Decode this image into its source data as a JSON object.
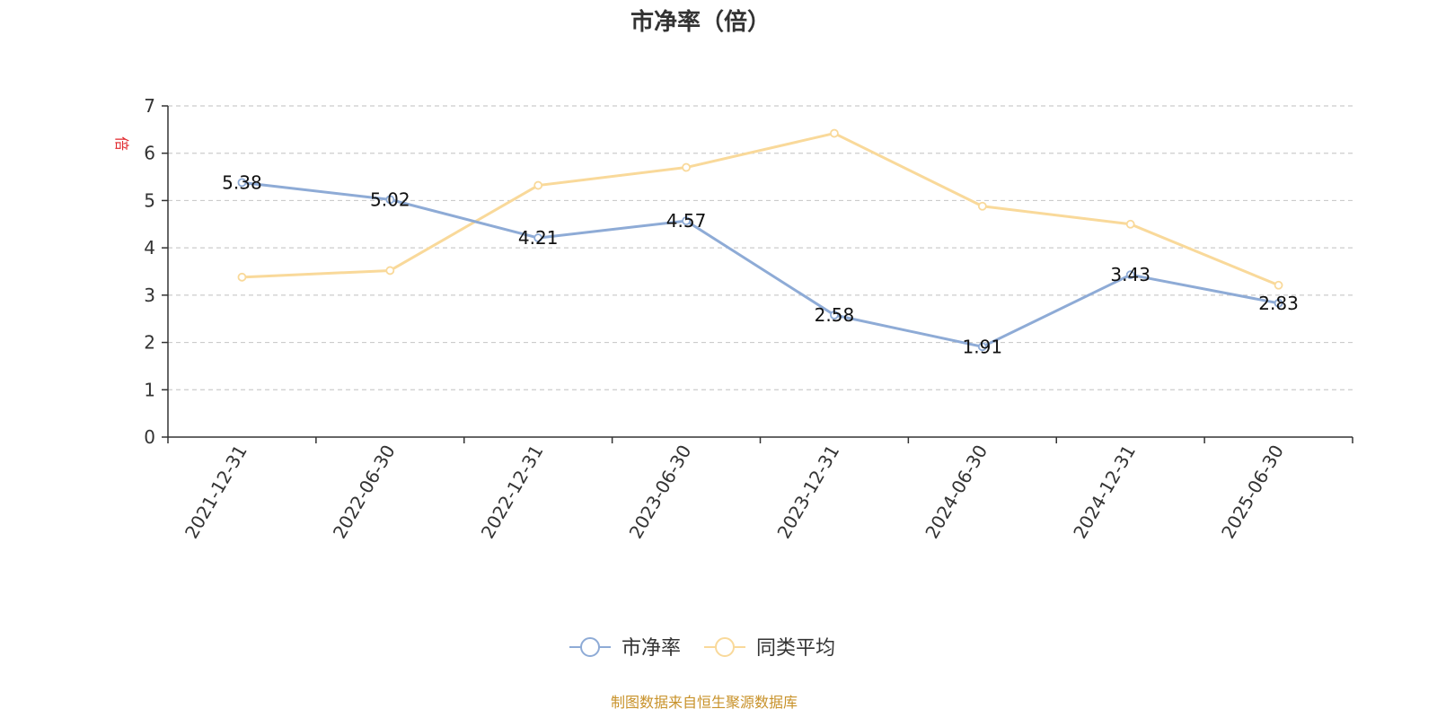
{
  "chart_data": {
    "type": "line",
    "title": "市净率（倍）",
    "ylabel": "倍",
    "ylim": [
      0,
      7
    ],
    "yticks": [
      0,
      1,
      2,
      3,
      4,
      5,
      6,
      7
    ],
    "grid": true,
    "legend_position": "bottom",
    "categories": [
      "2021-12-31",
      "2022-06-30",
      "2022-12-31",
      "2023-06-30",
      "2023-12-31",
      "2024-06-30",
      "2024-12-31",
      "2025-06-30"
    ],
    "series": [
      {
        "name": "市净率",
        "color": "#8eabd6",
        "values": [
          5.38,
          5.02,
          4.21,
          4.57,
          2.58,
          1.91,
          3.43,
          2.83
        ],
        "labels": [
          "5.38",
          "5.02",
          "4.21",
          "4.57",
          "2.58",
          "1.91",
          "3.43",
          "2.83"
        ]
      },
      {
        "name": "同类平均",
        "color": "#f9d99a",
        "values": [
          3.38,
          3.52,
          5.32,
          5.7,
          6.42,
          4.88,
          4.5,
          3.21
        ]
      }
    ]
  },
  "source": "制图数据来自恒生聚源数据库"
}
